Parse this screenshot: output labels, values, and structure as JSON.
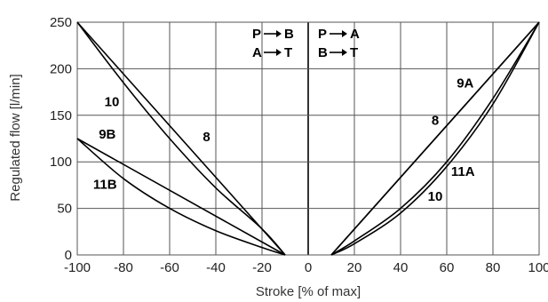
{
  "chart_data": {
    "type": "line",
    "xlabel": "Stroke [% of max]",
    "ylabel": "Regulated flow [l/min]",
    "xlim": [
      -100,
      100
    ],
    "ylim": [
      0,
      250
    ],
    "x_ticks": [
      -100,
      -80,
      -60,
      -40,
      -20,
      0,
      20,
      40,
      60,
      80,
      100
    ],
    "y_ticks": [
      0,
      50,
      100,
      150,
      200,
      250
    ],
    "grid": true,
    "legend": {
      "left": [
        "P",
        "B",
        "A",
        "T"
      ],
      "right": [
        "P",
        "A",
        "B",
        "T"
      ]
    },
    "series": [
      {
        "name": "8",
        "points": [
          [
            -100,
            250
          ],
          [
            -10,
            0
          ]
        ]
      },
      {
        "name": "10",
        "points": [
          [
            -100,
            250
          ],
          [
            -80,
            185
          ],
          [
            -60,
            125
          ],
          [
            -40,
            72
          ],
          [
            -20,
            28
          ],
          [
            -10,
            0
          ]
        ]
      },
      {
        "name": "9B",
        "points": [
          [
            -100,
            125
          ],
          [
            -10,
            0
          ]
        ]
      },
      {
        "name": "11B",
        "points": [
          [
            -100,
            125
          ],
          [
            -80,
            82
          ],
          [
            -60,
            50
          ],
          [
            -40,
            26
          ],
          [
            -20,
            8
          ],
          [
            -10,
            0
          ]
        ]
      },
      {
        "name": "8",
        "points": [
          [
            10,
            0
          ],
          [
            100,
            250
          ]
        ]
      },
      {
        "name": "9A",
        "points": [
          [
            10,
            0
          ],
          [
            100,
            250
          ]
        ]
      },
      {
        "name": "11A",
        "points": [
          [
            10,
            0
          ],
          [
            20,
            15
          ],
          [
            40,
            50
          ],
          [
            60,
            100
          ],
          [
            80,
            168
          ],
          [
            100,
            250
          ]
        ]
      },
      {
        "name": "10",
        "points": [
          [
            10,
            0
          ],
          [
            20,
            12
          ],
          [
            40,
            45
          ],
          [
            60,
            95
          ],
          [
            80,
            162
          ],
          [
            100,
            250
          ]
        ]
      }
    ],
    "annotations": [
      {
        "text": "10",
        "x": -85,
        "y": 160
      },
      {
        "text": "9B",
        "x": -87,
        "y": 125
      },
      {
        "text": "8",
        "x": -44,
        "y": 122
      },
      {
        "text": "11B",
        "x": -88,
        "y": 71
      },
      {
        "text": "9A",
        "x": 68,
        "y": 180
      },
      {
        "text": "8",
        "x": 55,
        "y": 140
      },
      {
        "text": "11A",
        "x": 67,
        "y": 85
      },
      {
        "text": "10",
        "x": 55,
        "y": 58
      }
    ]
  }
}
